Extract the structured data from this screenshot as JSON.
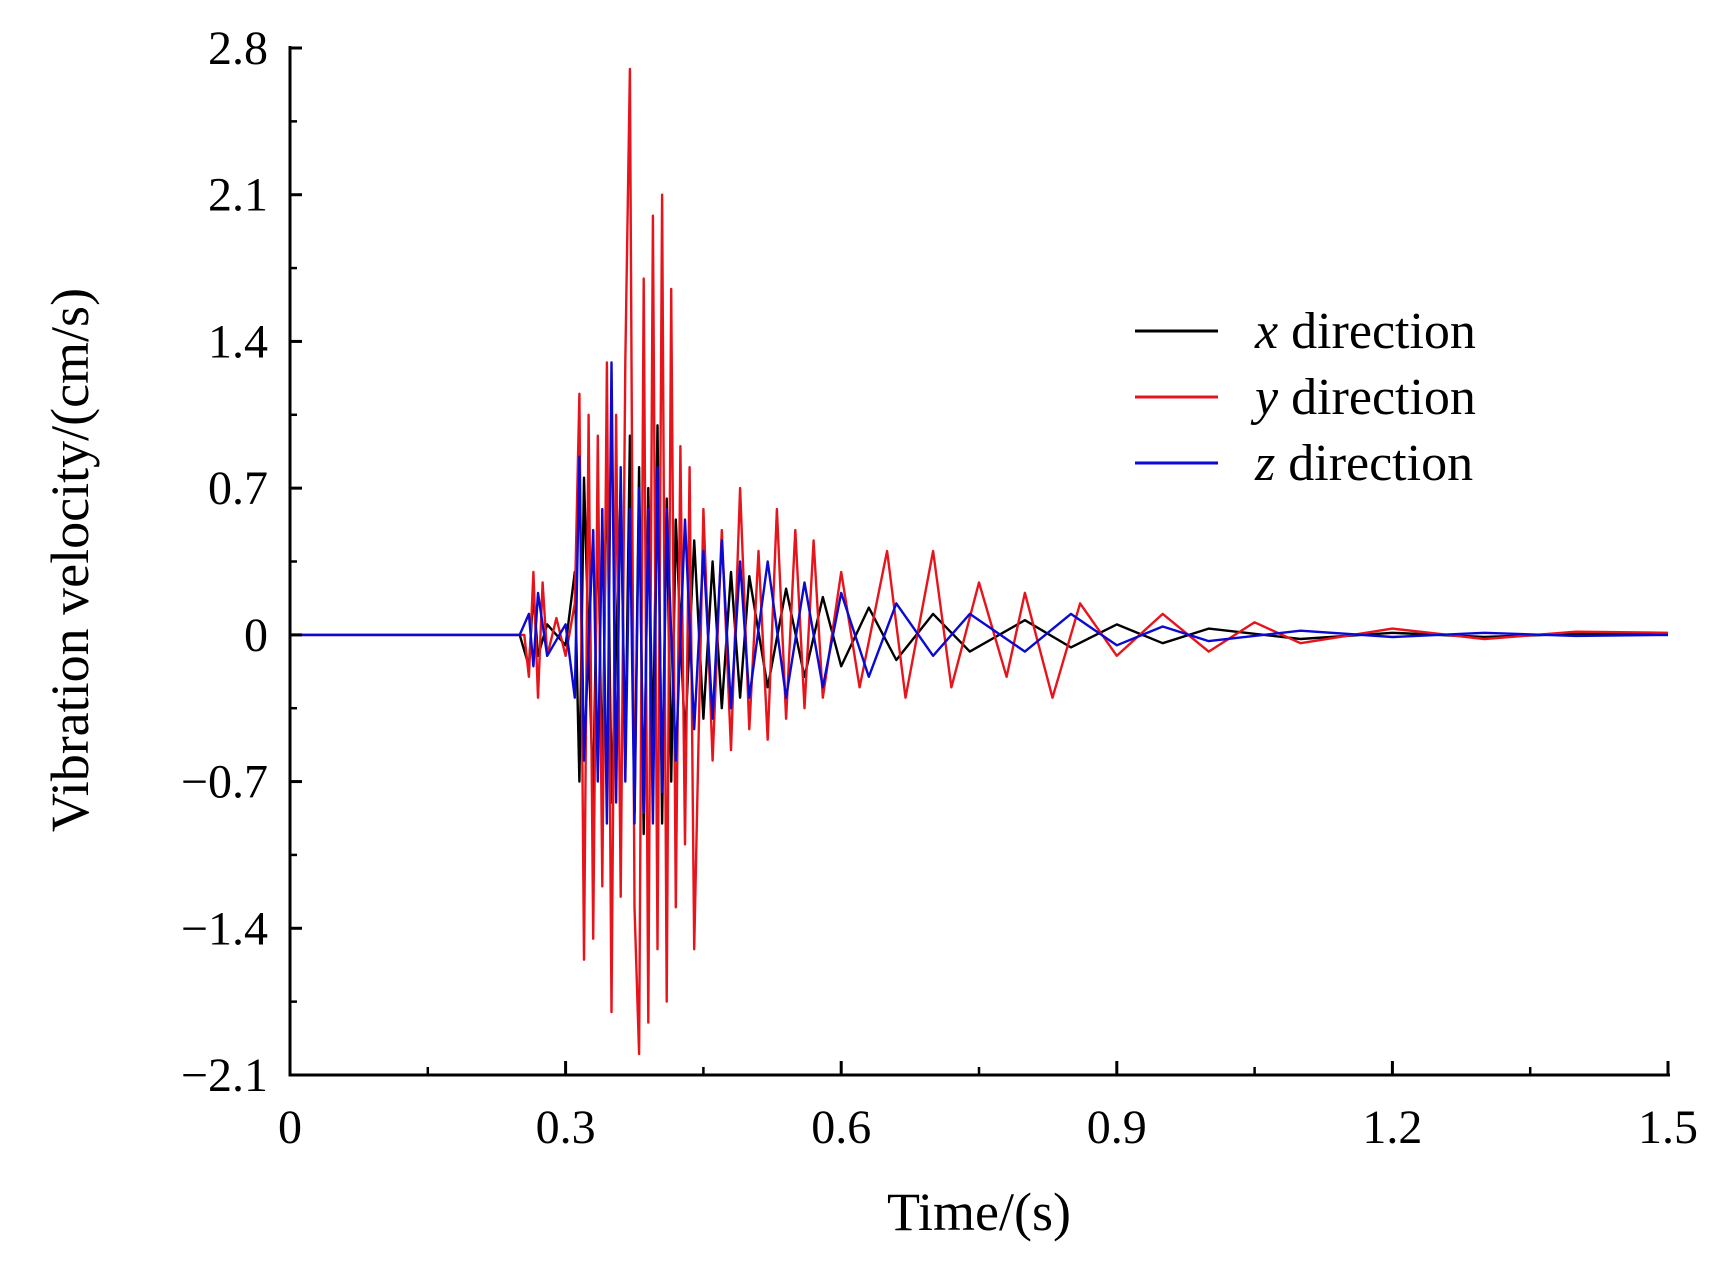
{
  "chart_data": {
    "type": "line",
    "title": "",
    "xlabel": "Time/(s)",
    "ylabel": "Vibration velocity/(cm/s)",
    "xlim": [
      0,
      1.5
    ],
    "ylim": [
      -2.1,
      2.8
    ],
    "x_ticks": [
      0,
      0.3,
      0.6,
      0.9,
      1.2,
      1.5
    ],
    "x_tick_labels": [
      "0",
      "0.3",
      "0.6",
      "0.9",
      "1.2",
      "1.5"
    ],
    "y_ticks": [
      2.8,
      2.1,
      1.4,
      0.7,
      0,
      -0.7,
      -1.4,
      -2.1
    ],
    "y_tick_labels": [
      "2.8",
      "2.1",
      "1.4",
      "0.7",
      "0",
      "−0.7",
      "−1.4",
      "−2.1"
    ],
    "grid": false,
    "legend_position": "top-right",
    "series": [
      {
        "name": "x direction",
        "name_var": "x",
        "name_rest": " direction",
        "color": "#000000",
        "points": [
          [
            0,
            0
          ],
          [
            0.25,
            0
          ],
          [
            0.26,
            -0.15
          ],
          [
            0.265,
            0.2
          ],
          [
            0.27,
            -0.1
          ],
          [
            0.28,
            0.05
          ],
          [
            0.3,
            -0.05
          ],
          [
            0.31,
            0.3
          ],
          [
            0.315,
            -0.7
          ],
          [
            0.32,
            0.75
          ],
          [
            0.33,
            -0.8
          ],
          [
            0.335,
            0.6
          ],
          [
            0.34,
            -0.75
          ],
          [
            0.345,
            0.9
          ],
          [
            0.35,
            -0.8
          ],
          [
            0.36,
            0.7
          ],
          [
            0.365,
            -0.6
          ],
          [
            0.37,
            0.95
          ],
          [
            0.375,
            -0.85
          ],
          [
            0.38,
            0.8
          ],
          [
            0.385,
            -0.95
          ],
          [
            0.39,
            0.7
          ],
          [
            0.395,
            -0.6
          ],
          [
            0.4,
            1.0
          ],
          [
            0.405,
            -0.9
          ],
          [
            0.41,
            0.65
          ],
          [
            0.415,
            -0.7
          ],
          [
            0.42,
            0.55
          ],
          [
            0.43,
            -0.5
          ],
          [
            0.44,
            0.45
          ],
          [
            0.45,
            -0.4
          ],
          [
            0.46,
            0.35
          ],
          [
            0.47,
            -0.35
          ],
          [
            0.48,
            0.3
          ],
          [
            0.49,
            -0.3
          ],
          [
            0.5,
            0.28
          ],
          [
            0.52,
            -0.25
          ],
          [
            0.54,
            0.22
          ],
          [
            0.56,
            -0.2
          ],
          [
            0.58,
            0.18
          ],
          [
            0.6,
            -0.15
          ],
          [
            0.63,
            0.13
          ],
          [
            0.66,
            -0.12
          ],
          [
            0.7,
            0.1
          ],
          [
            0.74,
            -0.08
          ],
          [
            0.8,
            0.07
          ],
          [
            0.85,
            -0.06
          ],
          [
            0.9,
            0.05
          ],
          [
            0.95,
            -0.04
          ],
          [
            1.0,
            0.03
          ],
          [
            1.1,
            -0.02
          ],
          [
            1.2,
            0.01
          ],
          [
            1.3,
            -0.01
          ],
          [
            1.4,
            0.005
          ],
          [
            1.5,
            0
          ]
        ]
      },
      {
        "name": "y direction",
        "name_var": "y",
        "name_rest": " direction",
        "color": "#e8141c",
        "points": [
          [
            0,
            0
          ],
          [
            0.255,
            0
          ],
          [
            0.26,
            -0.2
          ],
          [
            0.265,
            0.3
          ],
          [
            0.27,
            -0.3
          ],
          [
            0.275,
            0.25
          ],
          [
            0.28,
            -0.1
          ],
          [
            0.29,
            0.08
          ],
          [
            0.3,
            -0.1
          ],
          [
            0.31,
            0.15
          ],
          [
            0.315,
            1.15
          ],
          [
            0.32,
            -1.55
          ],
          [
            0.325,
            1.05
          ],
          [
            0.33,
            -1.45
          ],
          [
            0.335,
            0.95
          ],
          [
            0.34,
            -1.2
          ],
          [
            0.345,
            1.3
          ],
          [
            0.35,
            -1.8
          ],
          [
            0.355,
            1.05
          ],
          [
            0.36,
            -1.25
          ],
          [
            0.365,
            1.3
          ],
          [
            0.37,
            2.7
          ],
          [
            0.375,
            -1.3
          ],
          [
            0.38,
            -2.0
          ],
          [
            0.385,
            1.7
          ],
          [
            0.39,
            -1.85
          ],
          [
            0.395,
            2.0
          ],
          [
            0.4,
            -1.5
          ],
          [
            0.405,
            2.1
          ],
          [
            0.41,
            -1.75
          ],
          [
            0.415,
            1.65
          ],
          [
            0.42,
            -1.3
          ],
          [
            0.425,
            0.9
          ],
          [
            0.43,
            -1.0
          ],
          [
            0.435,
            0.8
          ],
          [
            0.44,
            -1.5
          ],
          [
            0.45,
            0.6
          ],
          [
            0.46,
            -0.6
          ],
          [
            0.47,
            0.5
          ],
          [
            0.48,
            -0.55
          ],
          [
            0.49,
            0.7
          ],
          [
            0.5,
            -0.45
          ],
          [
            0.51,
            0.4
          ],
          [
            0.52,
            -0.5
          ],
          [
            0.53,
            0.6
          ],
          [
            0.54,
            -0.4
          ],
          [
            0.55,
            0.5
          ],
          [
            0.56,
            -0.35
          ],
          [
            0.57,
            0.45
          ],
          [
            0.58,
            -0.3
          ],
          [
            0.6,
            0.3
          ],
          [
            0.62,
            -0.25
          ],
          [
            0.65,
            0.4
          ],
          [
            0.67,
            -0.3
          ],
          [
            0.7,
            0.4
          ],
          [
            0.72,
            -0.25
          ],
          [
            0.75,
            0.25
          ],
          [
            0.78,
            -0.2
          ],
          [
            0.8,
            0.2
          ],
          [
            0.83,
            -0.3
          ],
          [
            0.86,
            0.15
          ],
          [
            0.9,
            -0.1
          ],
          [
            0.95,
            0.1
          ],
          [
            1.0,
            -0.08
          ],
          [
            1.05,
            0.06
          ],
          [
            1.1,
            -0.04
          ],
          [
            1.2,
            0.03
          ],
          [
            1.3,
            -0.02
          ],
          [
            1.4,
            0.015
          ],
          [
            1.5,
            0.01
          ]
        ]
      },
      {
        "name": "z direction",
        "name_var": "z",
        "name_rest": " direction",
        "color": "#0a0ad2",
        "points": [
          [
            0,
            0
          ],
          [
            0.25,
            0
          ],
          [
            0.26,
            0.1
          ],
          [
            0.265,
            -0.15
          ],
          [
            0.27,
            0.2
          ],
          [
            0.28,
            -0.1
          ],
          [
            0.3,
            0.05
          ],
          [
            0.31,
            -0.3
          ],
          [
            0.315,
            0.85
          ],
          [
            0.32,
            -0.6
          ],
          [
            0.33,
            0.5
          ],
          [
            0.335,
            -0.7
          ],
          [
            0.34,
            0.6
          ],
          [
            0.345,
            -0.9
          ],
          [
            0.35,
            1.3
          ],
          [
            0.355,
            -0.8
          ],
          [
            0.36,
            0.8
          ],
          [
            0.365,
            -0.7
          ],
          [
            0.37,
            0.6
          ],
          [
            0.375,
            -0.9
          ],
          [
            0.38,
            0.7
          ],
          [
            0.385,
            -0.85
          ],
          [
            0.39,
            0.6
          ],
          [
            0.395,
            -0.9
          ],
          [
            0.4,
            0.8
          ],
          [
            0.405,
            -0.75
          ],
          [
            0.41,
            0.6
          ],
          [
            0.42,
            -0.6
          ],
          [
            0.43,
            0.55
          ],
          [
            0.44,
            -0.45
          ],
          [
            0.45,
            0.4
          ],
          [
            0.46,
            -0.4
          ],
          [
            0.47,
            0.45
          ],
          [
            0.48,
            -0.35
          ],
          [
            0.49,
            0.35
          ],
          [
            0.5,
            -0.3
          ],
          [
            0.52,
            0.35
          ],
          [
            0.54,
            -0.3
          ],
          [
            0.56,
            0.25
          ],
          [
            0.58,
            -0.25
          ],
          [
            0.6,
            0.2
          ],
          [
            0.63,
            -0.2
          ],
          [
            0.66,
            0.15
          ],
          [
            0.7,
            -0.1
          ],
          [
            0.74,
            0.1
          ],
          [
            0.8,
            -0.08
          ],
          [
            0.85,
            0.1
          ],
          [
            0.9,
            -0.05
          ],
          [
            0.95,
            0.04
          ],
          [
            1.0,
            -0.03
          ],
          [
            1.1,
            0.02
          ],
          [
            1.2,
            -0.01
          ],
          [
            1.3,
            0.01
          ],
          [
            1.4,
            -0.005
          ],
          [
            1.5,
            0
          ]
        ]
      }
    ]
  }
}
